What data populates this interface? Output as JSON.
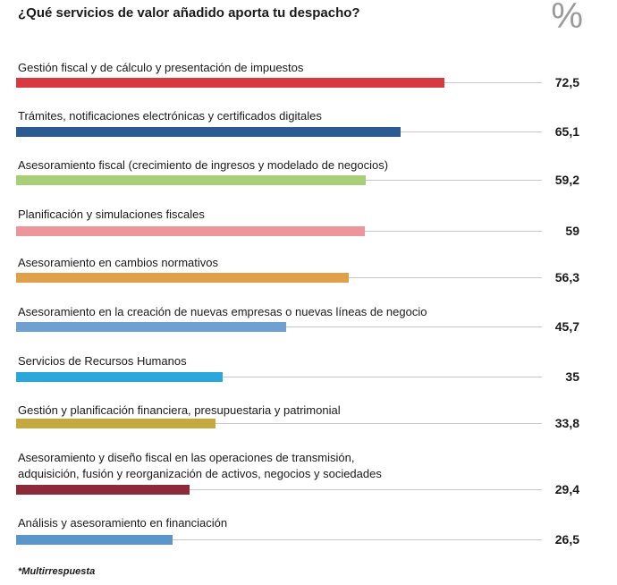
{
  "chart_data": {
    "type": "bar",
    "orientation": "horizontal",
    "title": "¿Qué servicios de valor añadido aporta tu despacho?",
    "unit": "%",
    "xlim": [
      0,
      89
    ],
    "footnote": "*Multirrespuesta",
    "categories": [
      "Gestión fiscal y de cálculo y presentación de impuestos",
      "Trámites, notificaciones electrónicas y certificados digitales",
      "Asesoramiento fiscal (crecimiento de ingresos y modelado de negocios)",
      "Planificación y simulaciones fiscales",
      "Asesoramiento en cambios normativos",
      "Asesoramiento en la creación de nuevas empresas o nuevas líneas de negocio",
      "Servicios de Recursos Humanos",
      "Gestión y planificación financiera, presupuestaria y patrimonial",
      "Asesoramiento y diseño fiscal en las operaciones de transmisión,\nadquisición, fusión y reorganización de activos, negocios y sociedades",
      "Análisis y asesoramiento en financiación"
    ],
    "values": [
      72.5,
      65.1,
      59.2,
      59,
      56.3,
      45.7,
      35,
      33.8,
      29.4,
      26.5
    ],
    "value_labels": [
      "72,5",
      "65,1",
      "59,2",
      "59",
      "56,3",
      "45,7",
      "35",
      "33,8",
      "29,4",
      "26,5"
    ],
    "colors": [
      "#d63a40",
      "#2c5a92",
      "#a8cf78",
      "#ec969c",
      "#e0a04a",
      "#6fa0d2",
      "#2aa8dc",
      "#c4a840",
      "#8c2a3a",
      "#5a96cc"
    ]
  }
}
